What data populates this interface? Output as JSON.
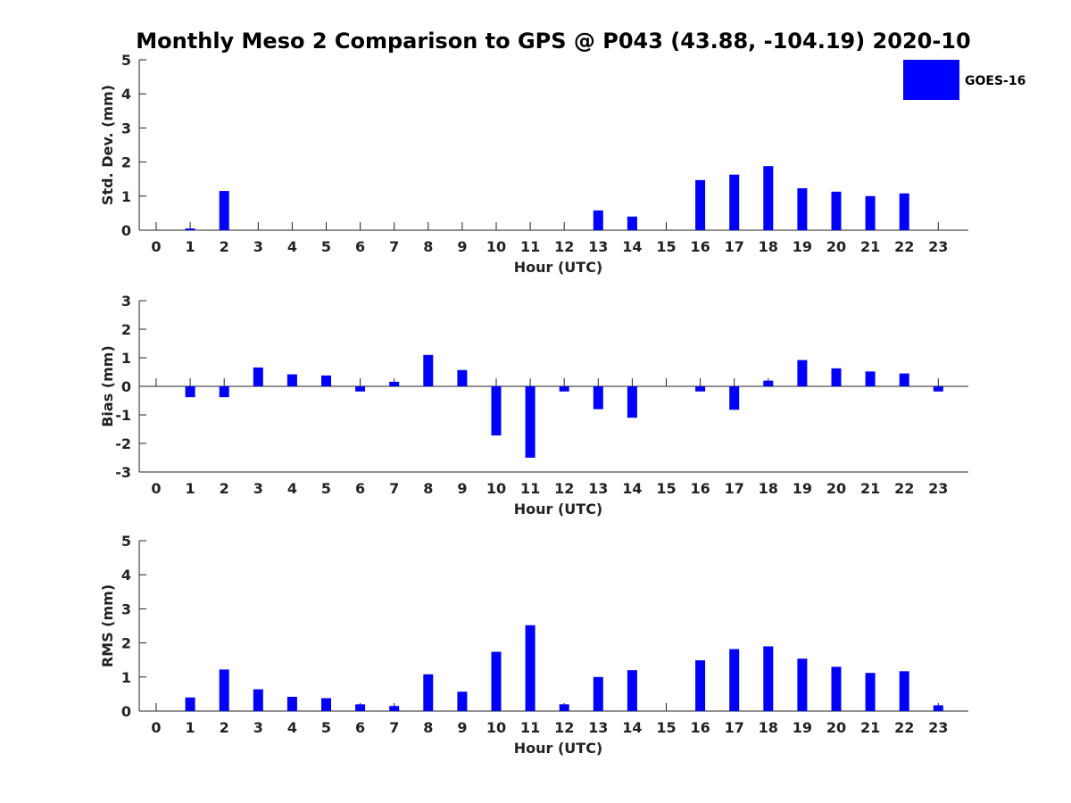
{
  "title": "Monthly Meso 2 Comparison to GPS @ P043 (43.88, -104.19) 2020-10",
  "legend": {
    "label": "GOES-16",
    "color": "#0000ff",
    "placement": "top-right"
  },
  "chart_data": [
    {
      "type": "bar",
      "xlabel": "Hour (UTC)",
      "ylabel": "Std. Dev. (mm)",
      "ylim": [
        0,
        5
      ],
      "yticks": [
        0,
        1,
        2,
        3,
        4,
        5
      ],
      "categories": [
        "0",
        "1",
        "2",
        "3",
        "4",
        "5",
        "6",
        "7",
        "8",
        "9",
        "10",
        "11",
        "12",
        "13",
        "14",
        "15",
        "16",
        "17",
        "18",
        "19",
        "20",
        "21",
        "22",
        "23"
      ],
      "series": [
        {
          "name": "GOES-16",
          "values": [
            null,
            0.05,
            1.15,
            null,
            null,
            null,
            null,
            null,
            null,
            null,
            null,
            null,
            null,
            0.58,
            0.4,
            null,
            1.47,
            1.63,
            1.88,
            1.23,
            1.13,
            1.0,
            1.08,
            null
          ]
        }
      ]
    },
    {
      "type": "bar",
      "xlabel": "Hour (UTC)",
      "ylabel": "Bias (mm)",
      "ylim": [
        -3,
        3
      ],
      "yticks": [
        -3,
        -2,
        -1,
        0,
        1,
        2,
        3
      ],
      "categories": [
        "0",
        "1",
        "2",
        "3",
        "4",
        "5",
        "6",
        "7",
        "8",
        "9",
        "10",
        "11",
        "12",
        "13",
        "14",
        "15",
        "16",
        "17",
        "18",
        "19",
        "20",
        "21",
        "22",
        "23"
      ],
      "series": [
        {
          "name": "GOES-16",
          "values": [
            null,
            -0.38,
            -0.38,
            0.66,
            0.42,
            0.38,
            -0.18,
            0.16,
            1.1,
            0.57,
            -1.72,
            -2.5,
            -0.18,
            -0.8,
            -1.1,
            null,
            -0.18,
            -0.82,
            0.2,
            0.92,
            0.63,
            0.52,
            0.45,
            -0.18
          ]
        }
      ]
    },
    {
      "type": "bar",
      "xlabel": "Hour (UTC)",
      "ylabel": "RMS (mm)",
      "ylim": [
        0,
        5
      ],
      "yticks": [
        0,
        1,
        2,
        3,
        4,
        5
      ],
      "categories": [
        "0",
        "1",
        "2",
        "3",
        "4",
        "5",
        "6",
        "7",
        "8",
        "9",
        "10",
        "11",
        "12",
        "13",
        "14",
        "15",
        "16",
        "17",
        "18",
        "19",
        "20",
        "21",
        "22",
        "23"
      ],
      "series": [
        {
          "name": "GOES-16",
          "values": [
            null,
            0.4,
            1.22,
            0.64,
            0.42,
            0.38,
            0.2,
            0.15,
            1.08,
            0.57,
            1.74,
            2.52,
            0.2,
            1.0,
            1.2,
            null,
            1.49,
            1.82,
            1.9,
            1.54,
            1.3,
            1.12,
            1.17,
            0.17
          ]
        }
      ]
    }
  ]
}
